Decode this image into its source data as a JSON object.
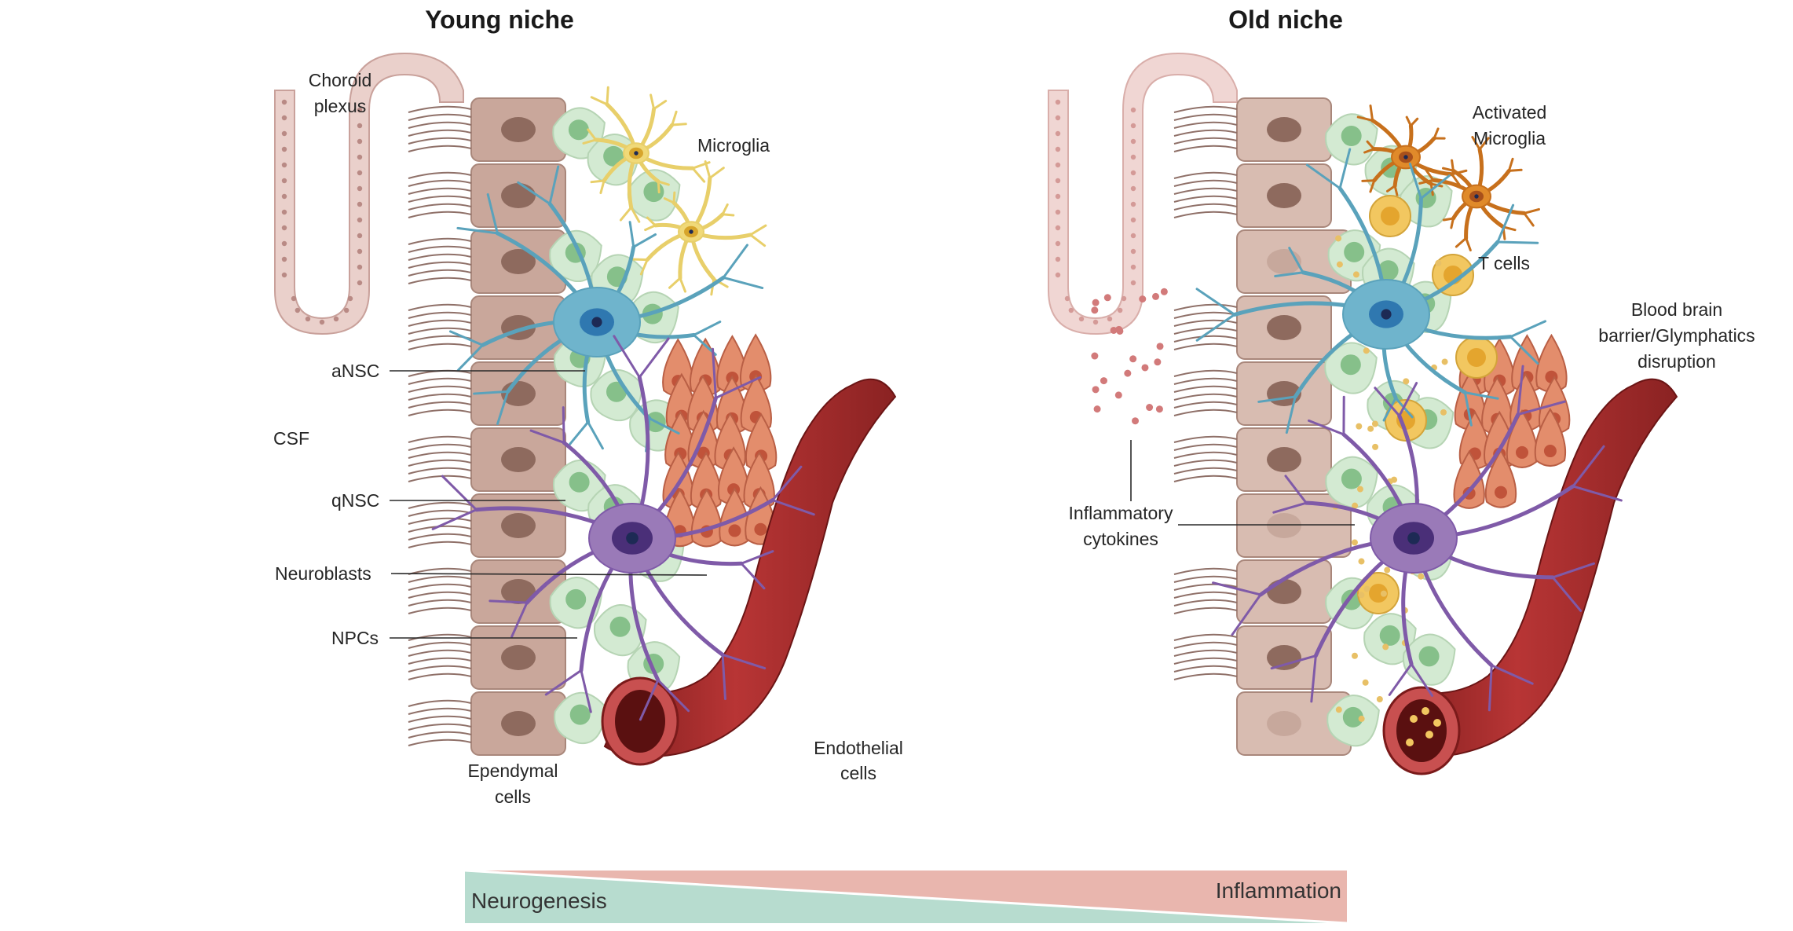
{
  "titles": {
    "young": "Young niche",
    "old": "Old niche"
  },
  "young_labels": {
    "choroid_1": "Choroid",
    "choroid_2": "plexus",
    "microglia": "Microglia",
    "ansc": "aNSC",
    "csf": "CSF",
    "qnsc": "qNSC",
    "neuroblasts": "Neuroblasts",
    "npcs": "NPCs",
    "ependymal_1": "Ependymal",
    "ependymal_2": "cells",
    "endothelial_1": "Endothelial",
    "endothelial_2": "cells"
  },
  "old_labels": {
    "activated_1": "Activated",
    "activated_2": "Microglia",
    "tcells": "T cells",
    "bbb_1": "Blood brain",
    "bbb_2": "barrier/Glymphatics",
    "bbb_3": "disruption",
    "inflam_1": "Inflammatory",
    "inflam_2": "cytokines"
  },
  "gradient_bar": {
    "left": "Neurogenesis",
    "right": "Inflammation"
  },
  "colors": {
    "ependymal": "#c9a79b",
    "ependymal_nucleus": "#8e6a5e",
    "choroid": "#e9c9c4",
    "npc": "#d3ead2",
    "npc_nucleus": "#86c08a",
    "ansc": "#6fb4cc",
    "qnsc": "#9a7ab8",
    "neuroblast": "#e38d6c",
    "vessel": "#a52a2a",
    "microglia": "#f0d978",
    "activated_microglia": "#e08a2a",
    "tcell": "#f2c760",
    "bar_green": "#b5dbd0",
    "bar_red": "#e8b3ab"
  }
}
